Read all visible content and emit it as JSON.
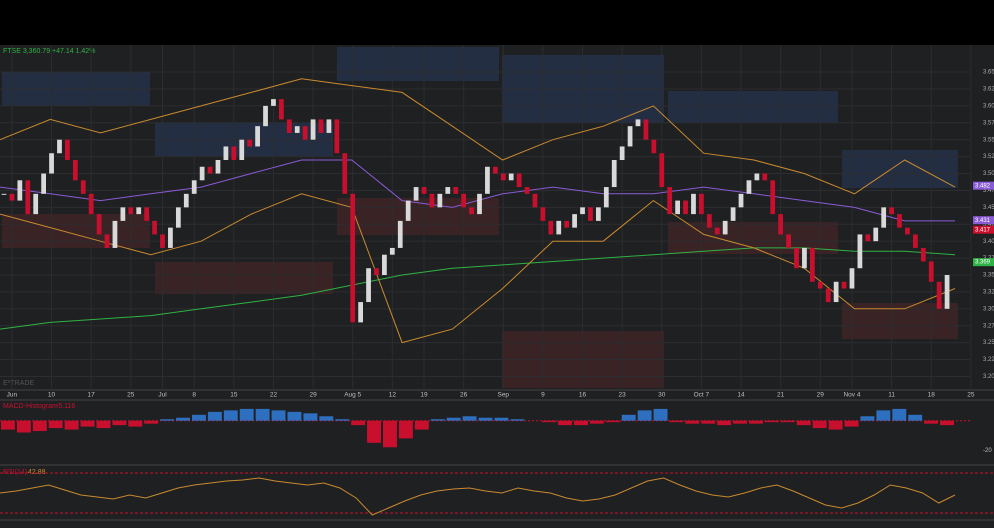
{
  "chart_data": {
    "type": "candlestick",
    "title": "FTSE 3,360.79 +47.14 1.42%",
    "watermark": "E*TRADE",
    "categories": [
      null,
      "Jun",
      null,
      null,
      null,
      null,
      "10",
      null,
      null,
      null,
      null,
      "17",
      null,
      null,
      null,
      null,
      "25",
      null,
      null,
      null,
      "Jul",
      null,
      null,
      null,
      "8",
      null,
      null,
      null,
      null,
      "15",
      null,
      null,
      null,
      null,
      "22",
      null,
      null,
      null,
      null,
      "29",
      null,
      null,
      null,
      null,
      "Aug 5",
      null,
      null,
      null,
      null,
      "12",
      null,
      null,
      null,
      "19",
      null,
      null,
      null,
      null,
      "26",
      null,
      null,
      null,
      null,
      "Sep",
      null,
      null,
      null,
      null,
      "9",
      null,
      null,
      null,
      null,
      "16",
      null,
      null,
      null,
      null,
      "23",
      null,
      null,
      null,
      null,
      "30",
      null,
      null,
      null,
      null,
      "Oct 7",
      null,
      null,
      null,
      null,
      "14",
      null,
      null,
      null,
      null,
      "21",
      null,
      null,
      null,
      null,
      "29",
      null,
      null,
      null,
      "Nov 4",
      null,
      null,
      null,
      null,
      "11",
      null,
      null,
      null,
      null,
      "18",
      null,
      null,
      null,
      null,
      "25"
    ],
    "candles": {
      "close": [
        3.47,
        3.46,
        3.49,
        3.44,
        3.47,
        3.5,
        3.53,
        3.55,
        3.52,
        3.49,
        3.47,
        3.44,
        3.41,
        3.39,
        3.43,
        3.45,
        3.44,
        3.45,
        3.43,
        3.41,
        3.39,
        3.42,
        3.45,
        3.47,
        3.49,
        3.51,
        3.5,
        3.52,
        3.54,
        3.52,
        3.55,
        3.54,
        3.57,
        3.6,
        3.61,
        3.58,
        3.56,
        3.57,
        3.55,
        3.58,
        3.56,
        3.58,
        3.53,
        3.47,
        3.28,
        3.31,
        3.36,
        3.35,
        3.38,
        3.39,
        3.43,
        3.46,
        3.48,
        3.47,
        3.45,
        3.47,
        3.48,
        3.47,
        3.45,
        3.44,
        3.47,
        3.51,
        3.5,
        3.49,
        3.5,
        3.48,
        3.47,
        3.45,
        3.43,
        3.41,
        3.43,
        3.42,
        3.44,
        3.45,
        3.43,
        3.45,
        3.48,
        3.52,
        3.54,
        3.57,
        3.58,
        3.55,
        3.53,
        3.48,
        3.44,
        3.46,
        3.44,
        3.47,
        3.44,
        3.42,
        3.41,
        3.43,
        3.45,
        3.47,
        3.49,
        3.5,
        3.49,
        3.44,
        3.41,
        3.39,
        3.36,
        3.39,
        3.34,
        3.33,
        3.31,
        3.34,
        3.33,
        3.36,
        3.41,
        3.4,
        3.42,
        3.45,
        3.44,
        3.42,
        3.41,
        3.39,
        3.37,
        3.34,
        3.3,
        3.35,
        null,
        null,
        null
      ],
      "up_color": "#d9d9d9",
      "down_color": "#c8102e"
    },
    "ylim": [
      3.18,
      3.69
    ],
    "yticks": [
      {
        "value": 3.65,
        "label": "3.65"
      },
      {
        "value": 3.625,
        "label": "3.62"
      },
      {
        "value": 3.6,
        "label": "3.60"
      },
      {
        "value": 3.575,
        "label": "3.57"
      },
      {
        "value": 3.55,
        "label": "3.55"
      },
      {
        "value": 3.525,
        "label": "3.52"
      },
      {
        "value": 3.5,
        "label": "3.50"
      },
      {
        "value": 3.475,
        "label": "3.47"
      },
      {
        "value": 3.45,
        "label": "3.45"
      },
      {
        "value": 3.425,
        "label": "3.42"
      },
      {
        "value": 3.4,
        "label": "3.40"
      },
      {
        "value": 3.375,
        "label": "3.37"
      },
      {
        "value": 3.35,
        "label": "3.35"
      },
      {
        "value": 3.325,
        "label": "3.32"
      },
      {
        "value": 3.3,
        "label": "3.30"
      },
      {
        "value": 3.275,
        "label": "3.27"
      },
      {
        "value": 3.25,
        "label": "3.25"
      },
      {
        "value": 3.225,
        "label": "3.22"
      },
      {
        "value": 3.2,
        "label": "3.20"
      }
    ],
    "overlays": [
      {
        "name": "SMA",
        "color": "#2fb344",
        "values": [
          3.27,
          3.28,
          3.285,
          3.29,
          3.3,
          3.31,
          3.32,
          3.335,
          3.35,
          3.36,
          3.365,
          3.37,
          3.375,
          3.38,
          3.385,
          3.39,
          3.39,
          3.385,
          3.385,
          3.38
        ]
      },
      {
        "name": "EMA",
        "color": "#8a5bd6",
        "values": [
          3.48,
          3.47,
          3.46,
          3.47,
          3.48,
          3.5,
          3.52,
          3.52,
          3.46,
          3.45,
          3.47,
          3.48,
          3.47,
          3.47,
          3.48,
          3.47,
          3.46,
          3.45,
          3.43,
          3.43
        ]
      },
      {
        "name": "Upper",
        "color": "#c98a2e",
        "values": [
          3.55,
          3.58,
          3.56,
          3.58,
          3.6,
          3.62,
          3.64,
          3.63,
          3.62,
          3.57,
          3.52,
          3.55,
          3.57,
          3.6,
          3.53,
          3.52,
          3.5,
          3.47,
          3.52,
          3.48
        ]
      },
      {
        "name": "Lower",
        "color": "#c98a2e",
        "values": [
          3.44,
          3.42,
          3.4,
          3.38,
          3.4,
          3.44,
          3.47,
          3.45,
          3.25,
          3.27,
          3.33,
          3.4,
          3.4,
          3.46,
          3.41,
          3.39,
          3.36,
          3.3,
          3.3,
          3.33
        ]
      }
    ],
    "price_labels": [
      {
        "text": "3.482",
        "color": "#8a5bd6",
        "value": 3.482
      },
      {
        "text": "3.431",
        "color": "#8a5bd6",
        "value": 3.431
      },
      {
        "text": "3.417",
        "color": "#c8102e",
        "value": 3.417
      },
      {
        "text": "3.369",
        "color": "#2fb344",
        "value": 3.369
      }
    ],
    "macd": {
      "title": "MACD-Histogram",
      "current": "-5.116",
      "ylim": [
        -28,
        12
      ],
      "yticks": [
        -20
      ],
      "values": [
        -6,
        -8,
        -7,
        -5,
        -6,
        -4,
        -5,
        -3,
        -4,
        -2,
        1,
        2,
        4,
        6,
        7,
        8,
        8,
        7,
        6,
        5,
        3,
        1,
        -3,
        -15,
        -18,
        -12,
        -6,
        1,
        2,
        3,
        2,
        2,
        1,
        0,
        -1,
        -3,
        -3,
        -2,
        -1,
        4,
        7,
        8,
        -1,
        -2,
        -2,
        -3,
        -2,
        -2,
        -1,
        -1,
        -3,
        -5,
        -6,
        -4,
        3,
        7,
        8,
        4,
        -2,
        -3
      ]
    },
    "rsi": {
      "title": "RSI(14)",
      "current": "42.88",
      "ylim": [
        25,
        75
      ],
      "levels": [
        30,
        70
      ],
      "values": [
        50,
        52,
        55,
        58,
        53,
        48,
        46,
        44,
        48,
        45,
        50,
        55,
        58,
        60,
        62,
        63,
        65,
        62,
        60,
        58,
        60,
        55,
        45,
        28,
        35,
        42,
        48,
        52,
        54,
        55,
        52,
        50,
        55,
        52,
        50,
        45,
        42,
        44,
        48,
        55,
        62,
        65,
        58,
        52,
        48,
        46,
        50,
        55,
        58,
        52,
        45,
        38,
        35,
        40,
        48,
        58,
        55,
        50,
        40,
        48
      ]
    }
  }
}
